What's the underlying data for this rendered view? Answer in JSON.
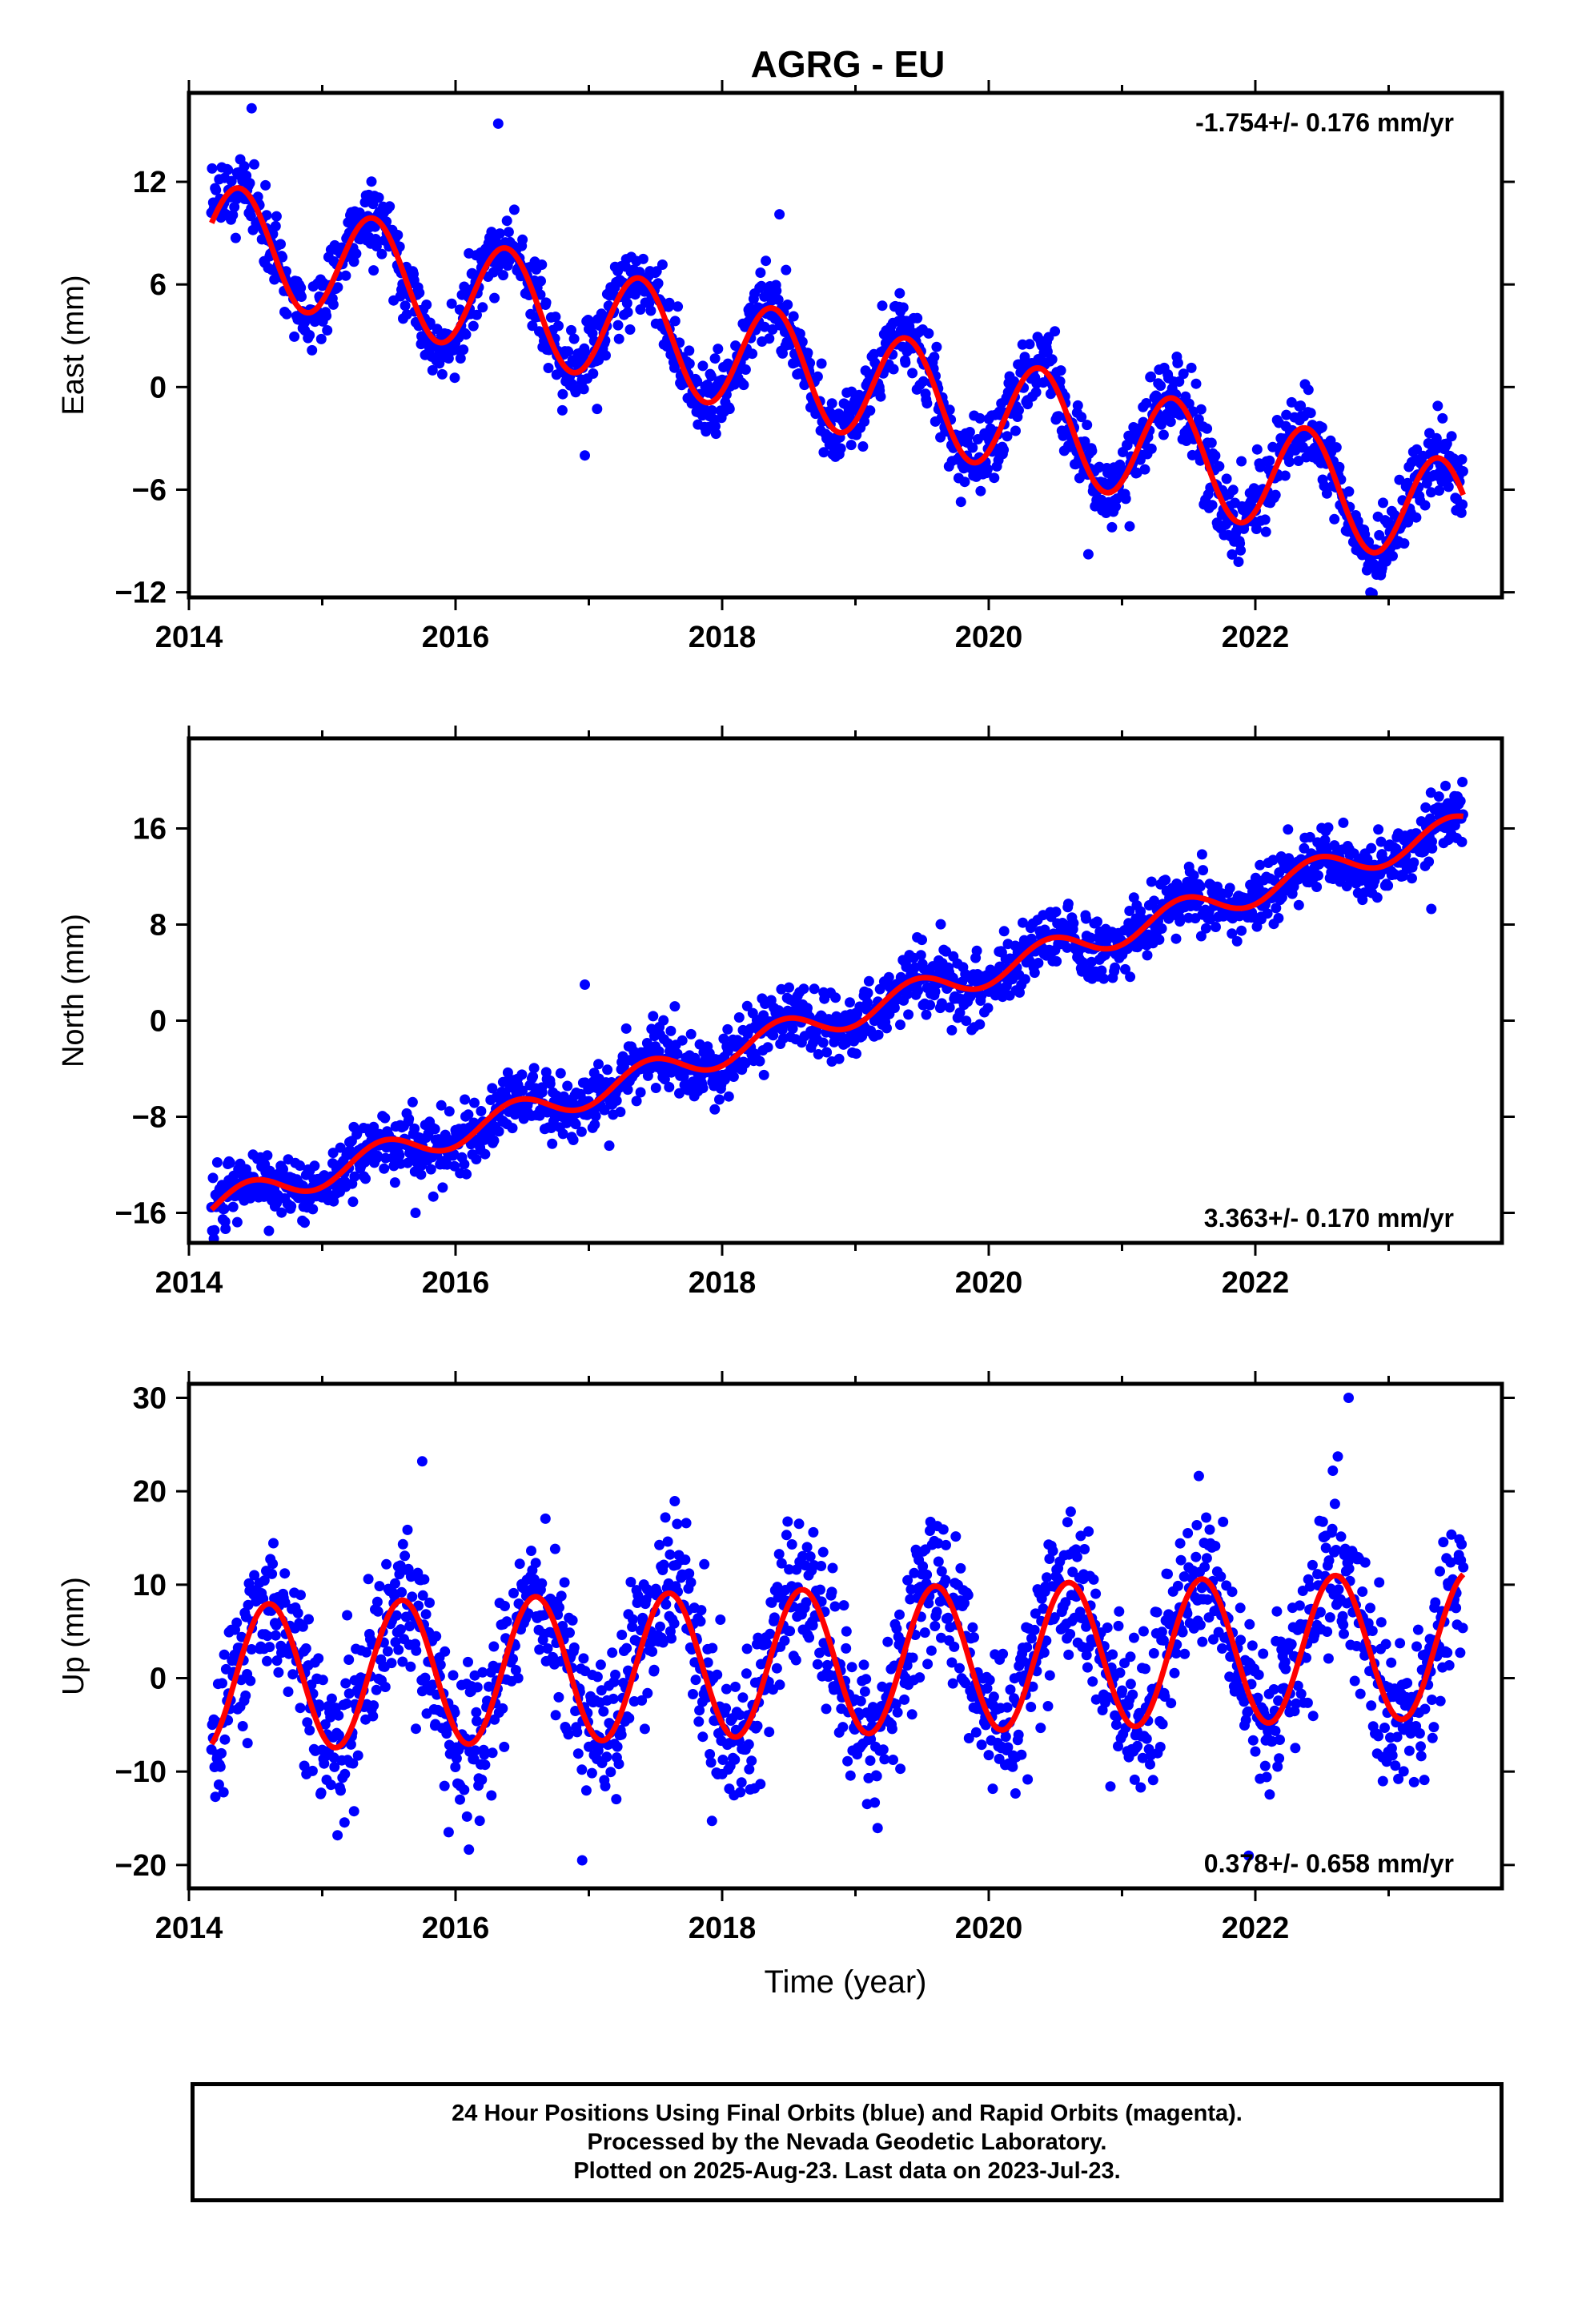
{
  "footer": {
    "line1": "24 Hour Positions Using Final Orbits (blue) and Rapid Orbits (magenta).",
    "line2": "Processed by the Nevada Geodetic Laboratory.",
    "line3": "Plotted on 2025-Aug-23. Last data on 2023-Jul-23."
  },
  "chart_data": [
    {
      "type": "scatter",
      "title": "AGRG - EU",
      "ylabel": "East (mm)",
      "xlabel": "",
      "xlim": [
        2014,
        2023.85
      ],
      "ylim": [
        -12.3,
        17.2
      ],
      "xticks": [
        2014,
        2016,
        2018,
        2020,
        2022
      ],
      "yticks": [
        -12,
        -6,
        0,
        6,
        12
      ],
      "rate_label": "-1.754+/- 0.176 mm/yr",
      "rate_position": "top-right",
      "x_range_data": [
        2014.17,
        2023.56
      ],
      "series": [
        {
          "values_model": "scatter",
          "color": "#0000ff"
        },
        {
          "values_model": "line",
          "color": "#ff0000"
        }
      ],
      "fit": {
        "x0": 2014.17,
        "y0": 8.8,
        "rate": -1.754,
        "amp1": 3.2,
        "phase1_peak": 0.38,
        "amp2": 0.0
      },
      "noise": 1.1,
      "outliers": [
        [
          2014.47,
          16.3
        ],
        [
          2016.32,
          15.4
        ],
        [
          2018.43,
          10.1
        ],
        [
          2016.97,
          -4.0
        ]
      ]
    },
    {
      "type": "scatter",
      "title": "",
      "ylabel": "North (mm)",
      "xlabel": "",
      "xlim": [
        2014,
        2023.85
      ],
      "ylim": [
        -18.5,
        23.5
      ],
      "xticks": [
        2014,
        2016,
        2018,
        2020,
        2022
      ],
      "yticks": [
        -16,
        -8,
        0,
        8,
        16
      ],
      "rate_label": "3.363+/- 0.170 mm/yr",
      "rate_position": "bottom-right",
      "x_range_data": [
        2014.17,
        2023.56
      ],
      "series": [
        {
          "values_model": "scatter",
          "color": "#0000ff"
        },
        {
          "values_model": "line",
          "color": "#ff0000"
        }
      ],
      "fit": {
        "x0": 2014.17,
        "y0": -15.5,
        "rate": 3.363,
        "amp1": 1.2,
        "phase1_peak": 0.45,
        "amp2": 0.0
      },
      "noise": 1.3,
      "outliers": [
        [
          2016.97,
          3.0
        ],
        [
          2023.32,
          9.3
        ],
        [
          2015.7,
          -16.0
        ],
        [
          2014.6,
          -17.5
        ]
      ]
    },
    {
      "type": "scatter",
      "title": "",
      "ylabel": "Up (mm)",
      "xlabel": "Time (year)",
      "xlim": [
        2014,
        2023.85
      ],
      "ylim": [
        -22.5,
        31.5
      ],
      "xticks": [
        2014,
        2016,
        2018,
        2020,
        2022
      ],
      "yticks": [
        -20,
        -10,
        0,
        10,
        20,
        30
      ],
      "rate_label": "0.378+/- 0.658 mm/yr",
      "rate_position": "bottom-right",
      "x_range_data": [
        2014.17,
        2023.56
      ],
      "series": [
        {
          "values_model": "scatter",
          "color": "#0000ff"
        },
        {
          "values_model": "line",
          "color": "#ff0000"
        }
      ],
      "fit": {
        "x0": 2014.17,
        "y0": 0.0,
        "rate": 0.378,
        "amp1": 7.8,
        "phase1_peak": 0.6,
        "amp2": 0.0
      },
      "noise": 4.0,
      "outliers": [
        [
          2015.75,
          23.2
        ],
        [
          2022.7,
          30.0
        ],
        [
          2021.95,
          -19.0
        ],
        [
          2016.95,
          -19.5
        ]
      ]
    }
  ]
}
